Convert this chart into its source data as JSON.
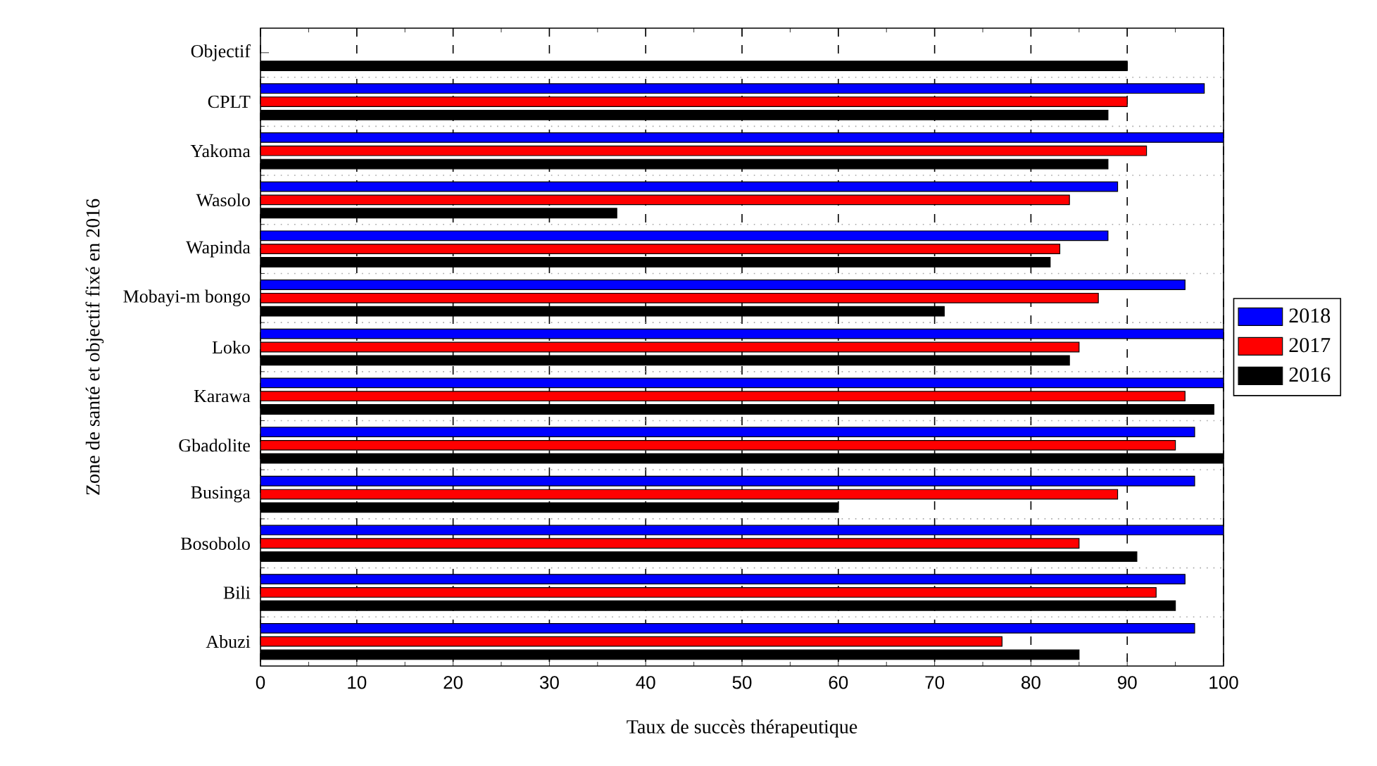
{
  "chart_data": {
    "type": "bar",
    "orientation": "horizontal",
    "xlabel": "Taux de succès thérapeutique",
    "ylabel": "Zone de santé et objectif fixé en 2016",
    "categories": [
      "Objectif",
      "CPLT",
      "Yakoma",
      "Wasolo",
      "Wapinda",
      "Mobayi-m bongo",
      "Loko",
      "Karawa",
      "Gbadolite",
      "Businga",
      "Bosobolo",
      "Bili",
      "Abuzi"
    ],
    "series": [
      {
        "name": "2018",
        "color": "#0000ff",
        "values": [
          null,
          98,
          100,
          89,
          88,
          96,
          100,
          100,
          97,
          97,
          100,
          96,
          97
        ]
      },
      {
        "name": "2017",
        "color": "#ff0000",
        "values": [
          null,
          90,
          92,
          84,
          83,
          87,
          85,
          96,
          95,
          89,
          85,
          93,
          77
        ]
      },
      {
        "name": "2016",
        "color": "#000000",
        "values": [
          90,
          88,
          88,
          37,
          82,
          71,
          84,
          99,
          100,
          60,
          91,
          95,
          85
        ]
      }
    ],
    "xlim": [
      0,
      100
    ],
    "xticks": [
      0,
      10,
      20,
      30,
      40,
      50,
      60,
      70,
      80,
      90,
      100
    ],
    "grid": true,
    "legend": "right"
  }
}
